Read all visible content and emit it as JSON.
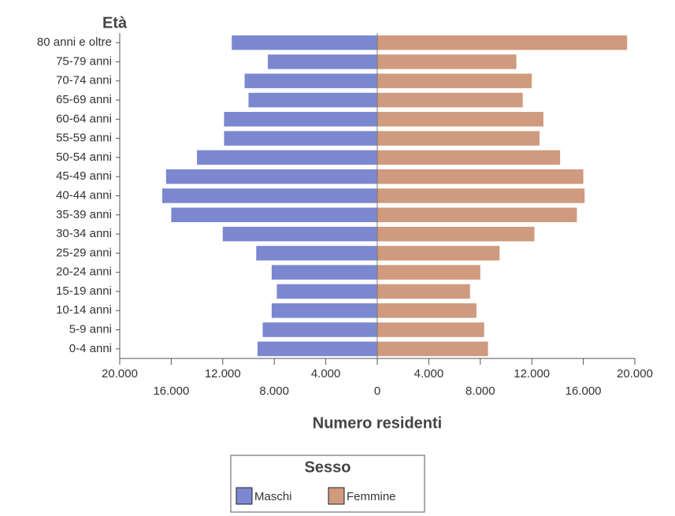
{
  "chart_data": {
    "type": "pyramid",
    "y_label": "Età",
    "x_label": "Numero residenti",
    "legend_title": "Sesso",
    "categories": [
      "80 anni e oltre",
      "75-79 anni",
      "70-74 anni",
      "65-69 anni",
      "60-64 anni",
      "55-59 anni",
      "50-54 anni",
      "45-49 anni",
      "40-44 anni",
      "35-39 anni",
      "30-34 anni",
      "25-29 anni",
      "20-24 anni",
      "15-19 anni",
      "10-14 anni",
      "5-9 anni",
      "0-4 anni"
    ],
    "series": [
      {
        "name": "Maschi",
        "color": "#7b88d0",
        "values": [
          -11300,
          -8500,
          -10300,
          -10000,
          -11900,
          -11900,
          -14000,
          -16400,
          -16700,
          -16000,
          -12000,
          -9400,
          -8200,
          -7800,
          -8200,
          -8900,
          -9300
        ]
      },
      {
        "name": "Femmine",
        "color": "#cf9a7e",
        "values": [
          19400,
          10800,
          12000,
          11300,
          12900,
          12600,
          14200,
          16000,
          16100,
          15500,
          12200,
          9500,
          8000,
          7200,
          7700,
          8300,
          8600
        ]
      }
    ],
    "xlim": [
      -20000,
      20000
    ],
    "xticks": [
      {
        "value": -20000,
        "label": "20.000"
      },
      {
        "value": -16000,
        "label": "16.000"
      },
      {
        "value": -12000,
        "label": "12.000"
      },
      {
        "value": -8000,
        "label": "8.000"
      },
      {
        "value": -4000,
        "label": "4.000"
      },
      0,
      {
        "value": 4000,
        "label": "4.000"
      },
      {
        "value": 8000,
        "label": "8.000"
      },
      {
        "value": 12000,
        "label": "12.000"
      },
      {
        "value": 16000,
        "label": "16.000"
      },
      {
        "value": 20000,
        "label": "20.000"
      }
    ]
  }
}
